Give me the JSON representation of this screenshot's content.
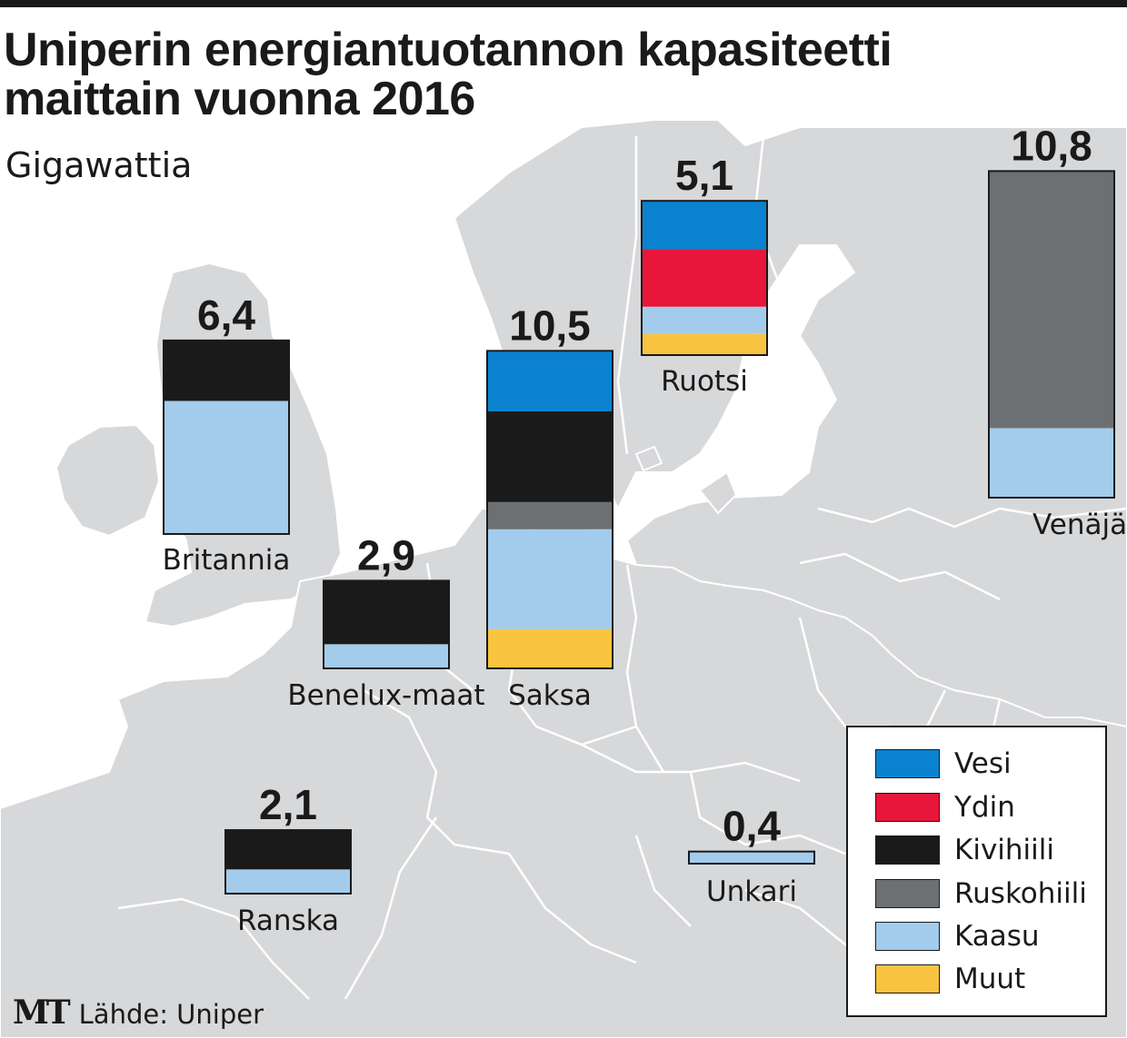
{
  "title": "Uniperin energiantuotannon kapasiteetti\nmaittain vuonna 2016",
  "subtitle": "Gigawattia",
  "source": {
    "logo": "MT",
    "text": "Lähde: Uniper"
  },
  "colors": {
    "Vesi": "#0a82cf",
    "Ydin": "#e8163a",
    "Kivihiili": "#1a1a1a",
    "Ruskohiili": "#6d7073",
    "Kaasu": "#a3ccec",
    "Muut": "#f9c440",
    "map_land": "#d7d8da",
    "map_water": "#ffffff"
  },
  "chart_data": {
    "type": "bar",
    "subtype": "stacked",
    "title": "Uniperin energiantuotannon kapasiteetti maittain vuonna 2016",
    "ylabel": "Gigawattia",
    "unit": "GW",
    "categories_order": [
      "Vesi",
      "Ydin",
      "Kivihiili",
      "Ruskohiili",
      "Kaasu",
      "Muut"
    ],
    "countries": [
      {
        "name": "Britannia",
        "total": 6.4,
        "total_label": "6,4",
        "segments": {
          "Vesi": 0,
          "Ydin": 0,
          "Kivihiili": 2.0,
          "Ruskohiili": 0,
          "Kaasu": 4.4,
          "Muut": 0
        }
      },
      {
        "name": "Benelux-maat",
        "total": 2.9,
        "total_label": "2,9",
        "segments": {
          "Vesi": 0,
          "Ydin": 0,
          "Kivihiili": 2.1,
          "Ruskohiili": 0,
          "Kaasu": 0.8,
          "Muut": 0
        }
      },
      {
        "name": "Saksa",
        "total": 10.5,
        "total_label": "10,5",
        "segments": {
          "Vesi": 2.0,
          "Ydin": 0,
          "Kivihiili": 3.0,
          "Ruskohiili": 0.9,
          "Kaasu": 3.3,
          "Muut": 1.3
        }
      },
      {
        "name": "Ruotsi",
        "total": 5.1,
        "total_label": "5,1",
        "segments": {
          "Vesi": 1.6,
          "Ydin": 1.9,
          "Kivihiili": 0,
          "Ruskohiili": 0,
          "Kaasu": 0.9,
          "Muut": 0.7
        }
      },
      {
        "name": "Venäjä",
        "total": 10.8,
        "total_label": "10,8",
        "segments": {
          "Vesi": 0,
          "Ydin": 0,
          "Kivihiili": 0,
          "Ruskohiili": 8.5,
          "Kaasu": 2.3,
          "Muut": 0
        }
      },
      {
        "name": "Ranska",
        "total": 2.1,
        "total_label": "2,1",
        "segments": {
          "Vesi": 0,
          "Ydin": 0,
          "Kivihiili": 1.3,
          "Ruskohiili": 0,
          "Kaasu": 0.8,
          "Muut": 0
        }
      },
      {
        "name": "Unkari",
        "total": 0.4,
        "total_label": "0,4",
        "segments": {
          "Vesi": 0,
          "Ydin": 0,
          "Kivihiili": 0,
          "Ruskohiili": 0,
          "Kaasu": 0.4,
          "Muut": 0
        }
      }
    ],
    "legend": [
      {
        "key": "Vesi",
        "label": "Vesi"
      },
      {
        "key": "Ydin",
        "label": "Ydin"
      },
      {
        "key": "Kivihiili",
        "label": "Kivihiili"
      },
      {
        "key": "Ruskohiili",
        "label": "Ruskohiili"
      },
      {
        "key": "Kaasu",
        "label": "Kaasu"
      },
      {
        "key": "Muut",
        "label": "Muut"
      }
    ],
    "legend_position": "bottom-right"
  }
}
